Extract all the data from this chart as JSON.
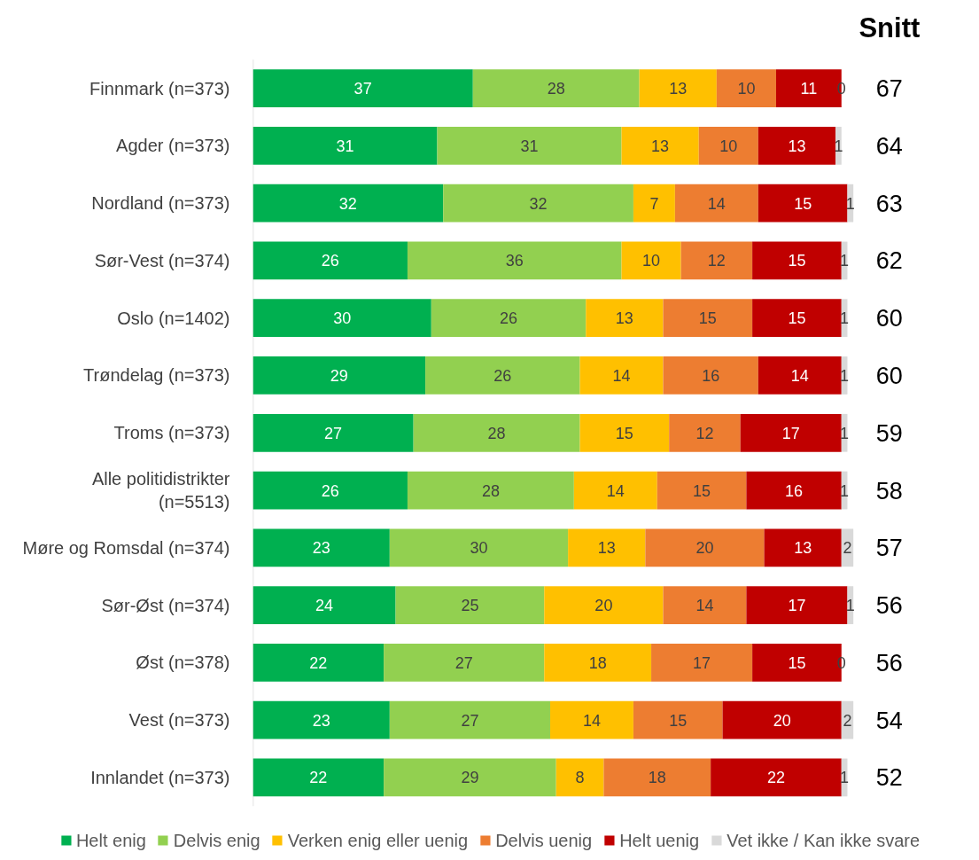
{
  "chart_data": {
    "type": "bar",
    "orientation": "horizontal",
    "stacked": true,
    "data_labels": true,
    "tick_labels": "y",
    "legend": "bottom",
    "categories": [
      "Finnmark (n=373)",
      "Agder (n=373)",
      "Nordland (n=373)",
      "Sør-Vest (n=374)",
      "Oslo (n=1402)",
      "Trøndelag (n=373)",
      "Troms (n=373)",
      "Alle politidistrikter (n=5513)",
      "Møre og Romsdal (n=374)",
      "Sør-Øst (n=374)",
      "Øst (n=378)",
      "Vest (n=373)",
      "Innlandet (n=373)"
    ],
    "series": [
      {
        "name": "Helt enig",
        "color": "#00b050",
        "values": [
          37,
          31,
          32,
          26,
          30,
          29,
          27,
          26,
          23,
          24,
          22,
          23,
          22
        ]
      },
      {
        "name": "Delvis enig",
        "color": "#92d050",
        "values": [
          28,
          31,
          32,
          36,
          26,
          26,
          28,
          28,
          30,
          25,
          27,
          27,
          29
        ]
      },
      {
        "name": "Verken enig eller uenig",
        "color": "#ffc000",
        "values": [
          13,
          13,
          7,
          10,
          13,
          14,
          15,
          14,
          13,
          20,
          18,
          14,
          8
        ]
      },
      {
        "name": "Delvis uenig",
        "color": "#ed7d31",
        "values": [
          10,
          10,
          14,
          12,
          15,
          16,
          12,
          15,
          20,
          14,
          17,
          15,
          18
        ]
      },
      {
        "name": "Helt uenig",
        "color": "#c00000",
        "values": [
          11,
          13,
          15,
          15,
          15,
          14,
          17,
          16,
          13,
          17,
          15,
          20,
          22
        ]
      },
      {
        "name": "Vet ikke / Kan ikke svare",
        "color": "#d9d9d9",
        "values": [
          0,
          1,
          1,
          1,
          1,
          1,
          1,
          1,
          2,
          1,
          0,
          2,
          1
        ]
      }
    ],
    "annotations": [
      "Snitt",
      "67",
      "64",
      "63",
      "62",
      "60",
      "60",
      "59",
      "58",
      "57",
      "56",
      "56",
      "54",
      "52"
    ]
  }
}
